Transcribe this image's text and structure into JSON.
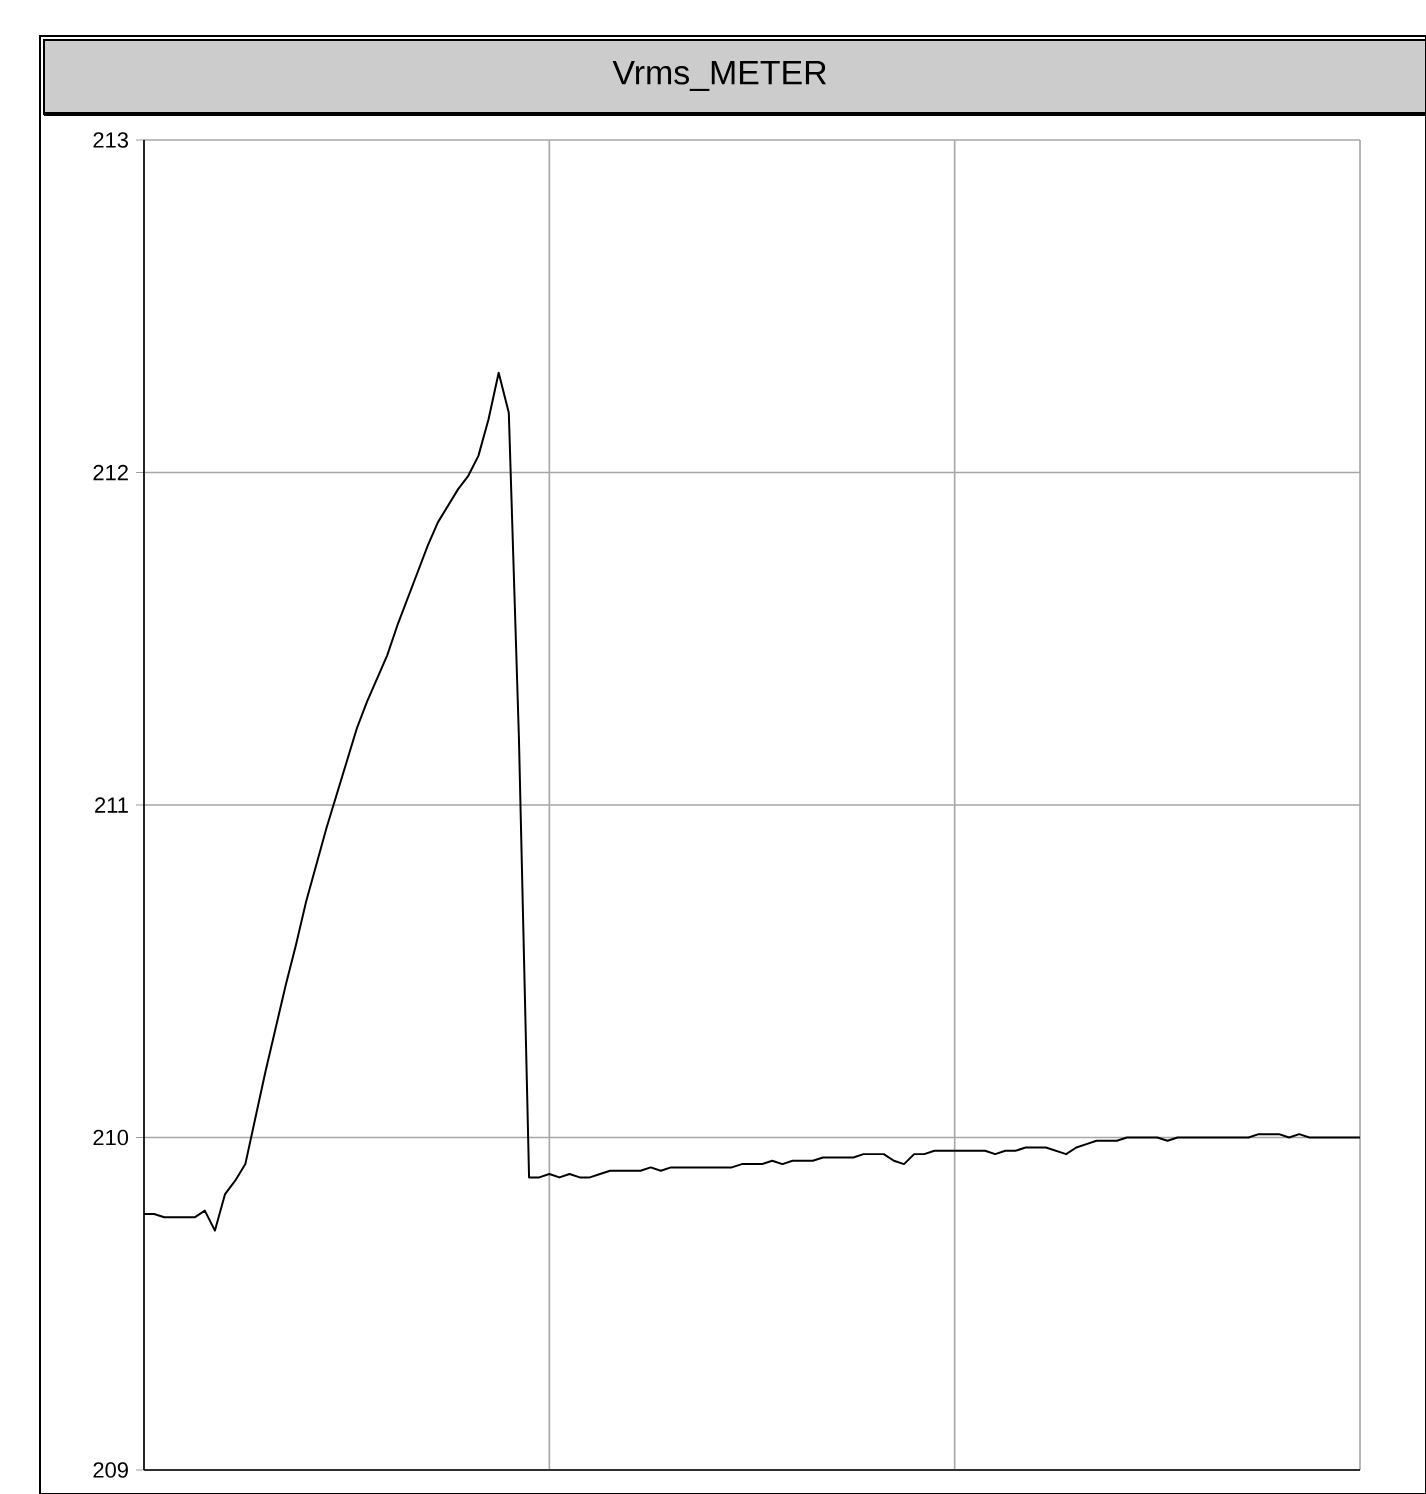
{
  "chart_data": {
    "type": "line",
    "title": "Vrms_METER",
    "categories": [
      null,
      null,
      null,
      null,
      null,
      null,
      null,
      null,
      null,
      null,
      null,
      null,
      null,
      null,
      null,
      null,
      null,
      null,
      null,
      null,
      null,
      null,
      null,
      null,
      null,
      null,
      null,
      null,
      null,
      null,
      null,
      null,
      null,
      null,
      null,
      null,
      null,
      null,
      null,
      null,
      null,
      null,
      null,
      null,
      null,
      null,
      null,
      null,
      null,
      null,
      null,
      null,
      null,
      null,
      null,
      null,
      null,
      null,
      null,
      null,
      null,
      null,
      null,
      null,
      null,
      null,
      null,
      null,
      null,
      null,
      null,
      null,
      null,
      null,
      null,
      null,
      null,
      null,
      null,
      null,
      null,
      null,
      null,
      null,
      null,
      null,
      null,
      null,
      null,
      null,
      null,
      null,
      null,
      null,
      null,
      null,
      null,
      null,
      null,
      null,
      null,
      null,
      null,
      null,
      null,
      null,
      null,
      null,
      null,
      null,
      null,
      null,
      null,
      null,
      null,
      null,
      null,
      null,
      null,
      null,
      null
    ],
    "series": [
      {
        "color": "#000000",
        "values": [
          209.77,
          209.77,
          209.76,
          209.76,
          209.76,
          209.76,
          209.78,
          209.72,
          209.83,
          209.87,
          209.92,
          210.06,
          210.2,
          210.33,
          210.46,
          210.58,
          210.71,
          210.82,
          210.93,
          211.03,
          211.13,
          211.23,
          211.31,
          211.38,
          211.45,
          211.54,
          211.62,
          211.7,
          211.78,
          211.85,
          211.9,
          211.95,
          211.99,
          212.05,
          212.16,
          212.3,
          212.18,
          211.2,
          209.88,
          209.88,
          209.89,
          209.88,
          209.89,
          209.88,
          209.88,
          209.89,
          209.9,
          209.9,
          209.9,
          209.9,
          209.91,
          209.9,
          209.91,
          209.91,
          209.91,
          209.91,
          209.91,
          209.91,
          209.91,
          209.92,
          209.92,
          209.92,
          209.93,
          209.92,
          209.93,
          209.93,
          209.93,
          209.94,
          209.94,
          209.94,
          209.94,
          209.95,
          209.95,
          209.95,
          209.93,
          209.92,
          209.95,
          209.95,
          209.96,
          209.96,
          209.96,
          209.96,
          209.96,
          209.96,
          209.95,
          209.96,
          209.96,
          209.97,
          209.97,
          209.97,
          209.96,
          209.95,
          209.97,
          209.98,
          209.99,
          209.99,
          209.99,
          210.0,
          210.0,
          210.0,
          210.0,
          209.99,
          210.0,
          210.0,
          210.0,
          210.0,
          210.0,
          210.0,
          210.0,
          210.0,
          210.01,
          210.01,
          210.01,
          210.0,
          210.01,
          210.0,
          210.0,
          210.0,
          210.0,
          210.0,
          210.0
        ]
      }
    ],
    "ylim": [
      209,
      213
    ],
    "yticks": [
      209,
      210,
      211,
      212,
      213
    ],
    "grid": true
  }
}
